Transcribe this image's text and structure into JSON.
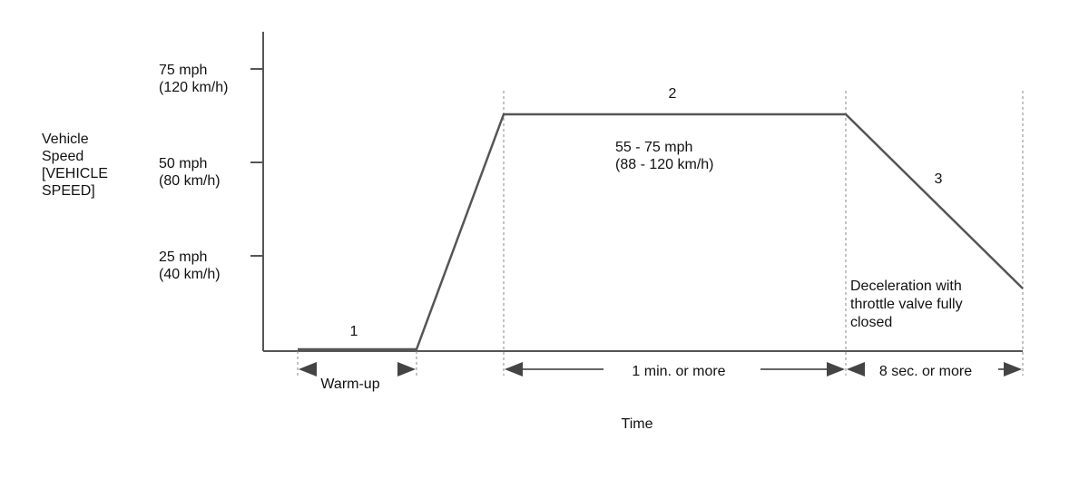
{
  "y_axis": {
    "label_lines": [
      "Vehicle",
      "Speed",
      "[VEHICLE",
      "SPEED]"
    ],
    "ticks": [
      {
        "line1": "75 mph",
        "line2": "(120 km/h)"
      },
      {
        "line1": "50 mph",
        "line2": "(80 km/h)"
      },
      {
        "line1": "25 mph",
        "line2": "(40 km/h)"
      }
    ]
  },
  "x_axis": {
    "label": "Time"
  },
  "phases": {
    "p1": {
      "number": "1",
      "duration": "Warm-up"
    },
    "p2": {
      "number": "2",
      "speed_line1": "55 - 75 mph",
      "speed_line2": "(88 - 120 km/h)",
      "duration": "1 min. or more"
    },
    "p3": {
      "number": "3",
      "note_lines": [
        "Deceleration with",
        "throttle valve fully",
        "closed"
      ],
      "duration": "8 sec. or more"
    }
  },
  "colors": {
    "line": "#555555",
    "dashed": "#888888"
  }
}
